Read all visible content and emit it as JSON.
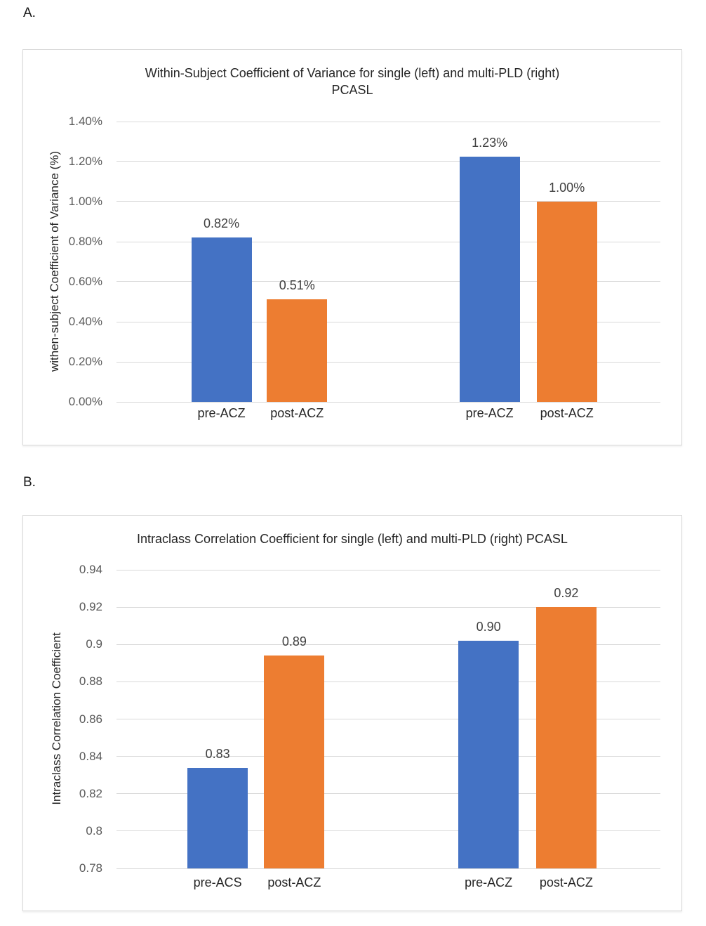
{
  "figure_labels": {
    "a": "A.",
    "b": "B."
  },
  "colors": {
    "series_pre": "#4472C4",
    "series_post": "#ED7D31",
    "gridline": "#D9D9D9",
    "tick_text": "#595959",
    "data_label_text": "#404040",
    "title_text": "#262626",
    "panel_border": "#D9D9D9",
    "background": "#FFFFFF"
  },
  "chart_data": [
    {
      "type": "bar",
      "title": "Within-Subject Coefficient of Variance for single (left) and multi-PLD (right) PCASL",
      "title_lines": [
        "Within-Subject Coefficient of Variance for single (left) and multi-PLD (right)",
        "PCASL"
      ],
      "ylabel": "withen-subject Coefficient of Variance (%)",
      "xlabel": "",
      "ylim": [
        0,
        1.4
      ],
      "ystep": 0.2,
      "yticks": [
        "1.40%",
        "1.20%",
        "1.00%",
        "0.80%",
        "0.60%",
        "0.40%",
        "0.20%",
        "0.00%"
      ],
      "grid": true,
      "legend": false,
      "categories": [
        "pre-ACZ",
        "post-ACZ",
        "pre-ACZ",
        "post-ACZ"
      ],
      "values": [
        0.82,
        0.51,
        1.23,
        1.0
      ],
      "bar_width_pct": 11.1,
      "bars": [
        {
          "category": "pre-ACZ",
          "series": "pre",
          "value": 0.82,
          "label": "0.82%",
          "drawn_value": 0.822,
          "x_pct": 19.3
        },
        {
          "category": "post-ACZ",
          "series": "post",
          "value": 0.51,
          "label": "0.51%",
          "drawn_value": 0.512,
          "x_pct": 33.2
        },
        {
          "category": "pre-ACZ",
          "series": "pre",
          "value": 1.23,
          "label": "1.23%",
          "drawn_value": 1.224,
          "x_pct": 68.6
        },
        {
          "category": "post-ACZ",
          "series": "post",
          "value": 1.0,
          "label": "1.00%",
          "drawn_value": 1.0,
          "x_pct": 82.8
        }
      ]
    },
    {
      "type": "bar",
      "title": "Intraclass Correlation Coefficient for single (left) and multi-PLD (right) PCASL",
      "title_lines": [
        "Intraclass Correlation Coefficient for single (left) and multi-PLD (right) PCASL"
      ],
      "ylabel": "Intraclass Correlation Coefficient",
      "xlabel": "",
      "ylim": [
        0.78,
        0.94
      ],
      "ystep": 0.02,
      "yticks": [
        "0.94",
        "0.92",
        "0.9",
        "0.88",
        "0.86",
        "0.84",
        "0.82",
        "0.8",
        "0.78"
      ],
      "grid": true,
      "legend": false,
      "categories": [
        "pre-ACS",
        "post-ACZ",
        "pre-ACZ",
        "post-ACZ"
      ],
      "values": [
        0.83,
        0.89,
        0.9,
        0.92
      ],
      "bar_width_pct": 11.1,
      "bars": [
        {
          "category": "pre-ACS",
          "series": "pre",
          "value": 0.83,
          "label": "0.83",
          "drawn_value": 0.834,
          "x_pct": 18.6
        },
        {
          "category": "post-ACZ",
          "series": "post",
          "value": 0.89,
          "label": "0.89",
          "drawn_value": 0.894,
          "x_pct": 32.7
        },
        {
          "category": "pre-ACZ",
          "series": "pre",
          "value": 0.9,
          "label": "0.90",
          "drawn_value": 0.902,
          "x_pct": 68.4
        },
        {
          "category": "post-ACZ",
          "series": "post",
          "value": 0.92,
          "label": "0.92",
          "drawn_value": 0.92,
          "x_pct": 82.7
        }
      ]
    }
  ]
}
